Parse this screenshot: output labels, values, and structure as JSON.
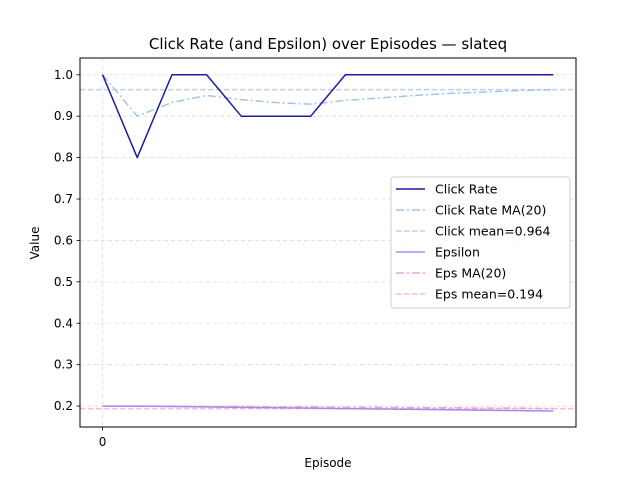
{
  "chart_data": {
    "type": "line",
    "title": "Click Rate (and Epsilon) over Episodes — slateq",
    "xlabel": "Episode",
    "ylabel": "Value",
    "xlim": [
      -0.65,
      13.65
    ],
    "ylim": [
      0.1495,
      1.0405
    ],
    "xticks": [
      0
    ],
    "yticks": [
      0.2,
      0.3,
      0.4,
      0.5,
      0.6,
      0.7,
      0.8,
      0.9,
      1.0
    ],
    "ytick_labels": [
      "0.2",
      "0.3",
      "0.4",
      "0.5",
      "0.6",
      "0.7",
      "0.8",
      "0.9",
      "1.0"
    ],
    "grid": true,
    "legend_position": "center-right",
    "series": [
      {
        "name": "Click Rate",
        "style": "solid",
        "color": "#1c1ca0",
        "x": [
          0,
          1,
          2,
          3,
          4,
          5,
          6,
          7,
          8,
          9,
          10,
          11,
          12,
          13
        ],
        "values": [
          1.0,
          0.8,
          1.0,
          1.0,
          0.9,
          0.9,
          0.9,
          1.0,
          1.0,
          1.0,
          1.0,
          1.0,
          1.0,
          1.0
        ]
      },
      {
        "name": "Click Rate MA(20)",
        "style": "dashdot",
        "color": "#a0c4ec",
        "x": [
          0,
          1,
          2,
          3,
          4,
          5,
          6,
          7,
          8,
          9,
          10,
          11,
          12,
          13
        ],
        "values": [
          1.0,
          0.9,
          0.933,
          0.95,
          0.94,
          0.933,
          0.929,
          0.938,
          0.944,
          0.95,
          0.955,
          0.958,
          0.962,
          0.964
        ]
      },
      {
        "name": "Click mean=0.964",
        "style": "dashed",
        "color": "#b8d0f4",
        "hline": 0.964
      },
      {
        "name": "Epsilon",
        "style": "solid",
        "color": "#a888ec",
        "x": [
          0,
          1,
          2,
          3,
          4,
          5,
          6,
          7,
          8,
          9,
          10,
          11,
          12,
          13
        ],
        "values": [
          0.2,
          0.2,
          0.199,
          0.198,
          0.197,
          0.196,
          0.195,
          0.194,
          0.193,
          0.192,
          0.191,
          0.19,
          0.189,
          0.188
        ]
      },
      {
        "name": "Eps MA(20)",
        "style": "dashdot",
        "color": "#f0a0d8",
        "x": [
          0,
          1,
          2,
          3,
          4,
          5,
          6,
          7,
          8,
          9,
          10,
          11,
          12,
          13
        ],
        "values": [
          0.2,
          0.2,
          0.2,
          0.199,
          0.199,
          0.198,
          0.198,
          0.197,
          0.197,
          0.196,
          0.196,
          0.195,
          0.195,
          0.194
        ]
      },
      {
        "name": "Eps mean=0.194",
        "style": "dashed",
        "color": "#f8b8d8",
        "hline": 0.194
      }
    ]
  }
}
